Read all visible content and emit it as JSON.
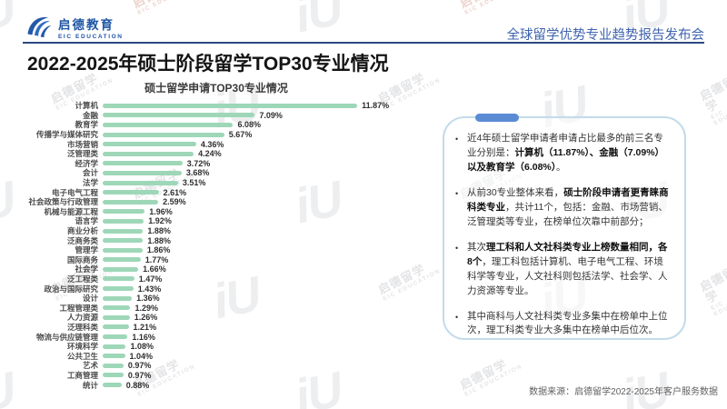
{
  "header": {
    "logo_name": "启德教育",
    "logo_sub": "EIC EDUCATION",
    "event_title": "全球留学优势专业趋势报告发布会"
  },
  "page_title": "2022-2025年硕士阶段留学TOP30专业情况",
  "chart_data": {
    "type": "bar",
    "orientation": "horizontal",
    "title": "硕士留学申请TOP30专业情况",
    "unit": "%",
    "xlim": [
      0,
      12.5
    ],
    "bar_color": "#9ed7b8",
    "categories": [
      "计算机",
      "金融",
      "教育学",
      "传播学与媒体研究",
      "市场营销",
      "泛管理类",
      "经济学",
      "会计",
      "法学",
      "电子电气工程",
      "社会政策与行政管理",
      "机械与能源工程",
      "语言学",
      "商业分析",
      "泛商务类",
      "管理学",
      "国际商务",
      "社会学",
      "泛工程类",
      "政治与国际研究",
      "设计",
      "工程管理类",
      "人力资源",
      "泛理科类",
      "物流与供应链管理",
      "环境科学",
      "公共卫生",
      "艺术",
      "工商管理",
      "统计"
    ],
    "values": [
      11.87,
      7.09,
      6.08,
      5.67,
      4.36,
      4.24,
      3.72,
      3.68,
      3.51,
      2.61,
      2.59,
      1.96,
      1.92,
      1.88,
      1.88,
      1.86,
      1.77,
      1.66,
      1.47,
      1.43,
      1.36,
      1.29,
      1.26,
      1.21,
      1.16,
      1.08,
      1.04,
      0.97,
      0.97,
      0.88
    ],
    "value_labels": [
      "11.87%",
      "7.09%",
      "6.08%",
      "5.67%",
      "4.36%",
      "4.24%",
      "3.72%",
      "3.68%",
      "3.51%",
      "2.61%",
      "2.59%",
      "1.96%",
      "1.92%",
      "1.88%",
      "1.88%",
      "1.86%",
      "1.77%",
      "1.66%",
      "1.47%",
      "1.43%",
      "1.36%",
      "1.29%",
      "1.26%",
      "1.21%",
      "1.16%",
      "1.08%",
      "1.04%",
      "0.97%",
      "0.97%",
      "0.88%"
    ]
  },
  "panel": {
    "bullet_char": "•",
    "bullets": [
      {
        "segments": [
          {
            "text": "近4年硕士留学申请者申请占比最多的前三名专业分别是：",
            "bold": false
          },
          {
            "text": "计算机（11.87%）、金融（7.09%）以及教育学（6.08%）",
            "bold": true
          },
          {
            "text": "。",
            "bold": false
          }
        ]
      },
      {
        "segments": [
          {
            "text": "从前30专业整体来看，",
            "bold": false
          },
          {
            "text": "硕士阶段申请者更青睐商科类专业",
            "bold": true
          },
          {
            "text": "，共计11个，包括：金融、市场营销、泛管理类等专业，在榜单位次靠中前部分；",
            "bold": false
          }
        ]
      },
      {
        "segments": [
          {
            "text": "其次",
            "bold": false
          },
          {
            "text": "理工科和人文社科类专业上榜数量相同，各8个",
            "bold": true
          },
          {
            "text": "，理工科包括计算机、电子电气工程、环境科学等专业，人文社科则包括法学、社会学、人力资源等专业。",
            "bold": false
          }
        ]
      },
      {
        "segments": [
          {
            "text": "其中商科与人文社科类专业多集中在榜单中上位次，理工科类专业大多集中在榜单中后位次。",
            "bold": false
          }
        ]
      }
    ]
  },
  "footer": {
    "source": "数据来源：启德留学2022-2025年客户服务数据"
  },
  "watermark": {
    "text": "启德留学",
    "subtext": "EIC EDUCATION",
    "glyph": "iU"
  },
  "colors": {
    "bar_green": "#9ed7b8",
    "brand_blue": "#1f55a5",
    "header_line": "#2c4a80",
    "panel_border": "#c3dbeb",
    "panel_pill": "#5b8bd5",
    "event_title_blue": "#3f63ae"
  }
}
